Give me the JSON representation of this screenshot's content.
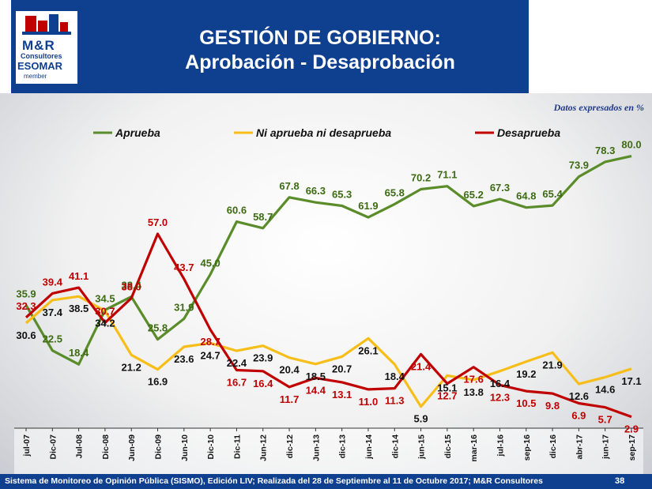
{
  "header": {
    "title_line1": "GESTIÓN DE GOBIERNO:",
    "title_line2": "Aprobación - Desaprobación",
    "logo_text_1": "M&R",
    "logo_text_2": "Consultores",
    "logo_text_3": "ESOMAR",
    "logo_text_4": "member"
  },
  "note": "Datos expresados en  %",
  "footer": {
    "source": "Sistema de Monitoreo de Opinión Pública (SISMO), Edición LIV; Realizada del 28 de Septiembre al 11 de Octubre 2017; M&R Consultores",
    "page": "38"
  },
  "colors": {
    "aprueba": "#5a8c2a",
    "ni": "#f7be1a",
    "desaprueba": "#c00000",
    "header": "#0f3f8f"
  },
  "chart_data": {
    "type": "line",
    "title": "",
    "xlabel": "",
    "ylabel": "",
    "categories": [
      "jul-07",
      "Dic-07",
      "Jul-08",
      "Dic-08",
      "Jun-09",
      "Dic-09",
      "Jun-10",
      "Dic-10",
      "Dic-11",
      "Jun-12",
      "dic-12",
      "Jun-13",
      "dic-13",
      "jun-14",
      "dic-14",
      "jun-15",
      "dic-15",
      "mar-16",
      "jul-16",
      "sep-16",
      "dic-16",
      "abr-17",
      "jun-17",
      "sep-17"
    ],
    "legend_position": "top",
    "series": [
      {
        "name": "Aprueba",
        "color": "#5a8c2a",
        "values": [
          35.9,
          22.5,
          18.4,
          34.5,
          38.4,
          25.8,
          31.9,
          45.0,
          60.6,
          58.7,
          67.8,
          66.3,
          65.3,
          61.9,
          65.8,
          70.2,
          71.1,
          65.2,
          67.3,
          64.8,
          65.4,
          73.9,
          78.3,
          80.0
        ],
        "labels": [
          "35.9",
          "22.5",
          "18.4",
          "34.5",
          "38.4",
          "25.8",
          "31.9",
          "45.0",
          "60.6",
          "58.7",
          "67.8",
          "66.3",
          "65.3",
          "61.9",
          "65.8",
          "70.2",
          "71.1",
          "65.2",
          "67.3",
          "64.8",
          "65.4",
          "73.9",
          "78.3",
          "80.0"
        ]
      },
      {
        "name": "Ni aprueba ni desaprueba",
        "color": "#f7be1a",
        "values": [
          30.6,
          37.4,
          38.5,
          34.2,
          21.2,
          16.9,
          23.6,
          24.7,
          22.4,
          23.9,
          20.4,
          18.5,
          20.7,
          26.1,
          18.4,
          5.9,
          15.1,
          13.8,
          16.4,
          19.2,
          21.9,
          12.6,
          14.6,
          17.1
        ],
        "labels": [
          "30.6",
          "37.4",
          "38.5",
          "34.2",
          "21.2",
          "16.9",
          "23.6",
          "24.7",
          "22.4",
          "23.9",
          "20.4",
          "18.5",
          "20.7",
          "26.1",
          "18.4",
          "5.9",
          "15.1",
          "13.8",
          "16.4",
          "19.2",
          "21.9",
          "12.6",
          "14.6",
          "17.1"
        ]
      },
      {
        "name": "Desaprueba",
        "color": "#c00000",
        "values": [
          32.3,
          39.4,
          41.1,
          30.7,
          38.0,
          57.0,
          43.7,
          28.7,
          16.7,
          16.4,
          11.7,
          14.4,
          13.1,
          11.0,
          11.3,
          21.4,
          12.7,
          17.6,
          12.3,
          10.5,
          9.8,
          6.9,
          5.7,
          2.9
        ],
        "labels": [
          "32.3",
          "39.4",
          "41.1",
          "30.7",
          "38.0",
          "57.0",
          "43.7",
          "28.7",
          "16.7",
          "16.4",
          "11.7",
          "14.4",
          "13.1",
          "11.0",
          "11.3",
          "21.4",
          "12.7",
          "17.6",
          "12.3",
          "10.5",
          "9.8",
          "6.9",
          "5.7",
          "2.9"
        ]
      }
    ],
    "ylim": [
      0,
      85
    ]
  }
}
